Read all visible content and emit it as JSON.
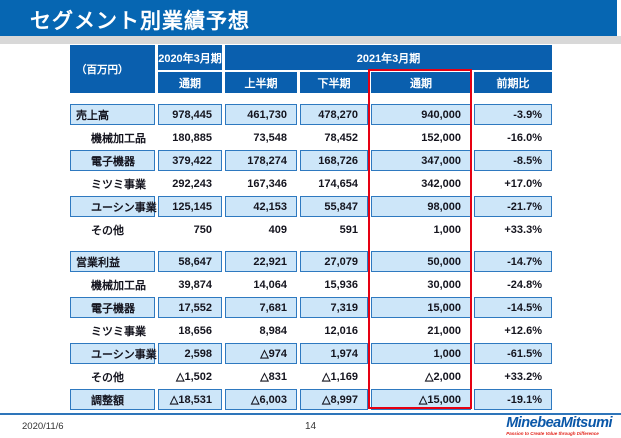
{
  "slide": {
    "title": "セグメント別業績予想"
  },
  "colors": {
    "banner_blue": "#0666b2",
    "header_blue": "#0a5fae",
    "shaded_row_blue": "#cde6f9",
    "grid_border_blue": "#2e79c0",
    "highlight_red": "#e60012",
    "logo_blue": "#0a57a8",
    "logo_red": "#e2231a"
  },
  "table": {
    "header": {
      "unit": "（百万円）",
      "fy2020": "2020年3月期",
      "fy2020_sub": "通期",
      "fy2021": "2021年3月期",
      "fy2021_sub": [
        "上半期",
        "下半期",
        "通期"
      ],
      "yoy": "前期比"
    },
    "sections": [
      {
        "rows": [
          {
            "label": "売上高",
            "indent": false,
            "values": [
              "978,445",
              "461,730",
              "478,270",
              "940,000",
              "-3.9%"
            ]
          },
          {
            "label": "機械加工品",
            "indent": true,
            "values": [
              "180,885",
              "73,548",
              "78,452",
              "152,000",
              "-16.0%"
            ]
          },
          {
            "label": "電子機器",
            "indent": true,
            "values": [
              "379,422",
              "178,274",
              "168,726",
              "347,000",
              "-8.5%"
            ]
          },
          {
            "label": "ミツミ事業",
            "indent": true,
            "values": [
              "292,243",
              "167,346",
              "174,654",
              "342,000",
              "+17.0%"
            ]
          },
          {
            "label": "ユーシン事業",
            "indent": true,
            "values": [
              "125,145",
              "42,153",
              "55,847",
              "98,000",
              "-21.7%"
            ]
          },
          {
            "label": "その他",
            "indent": true,
            "values": [
              "750",
              "409",
              "591",
              "1,000",
              "+33.3%"
            ]
          }
        ]
      },
      {
        "rows": [
          {
            "label": "営業利益",
            "indent": false,
            "values": [
              "58,647",
              "22,921",
              "27,079",
              "50,000",
              "-14.7%"
            ]
          },
          {
            "label": "機械加工品",
            "indent": true,
            "values": [
              "39,874",
              "14,064",
              "15,936",
              "30,000",
              "-24.8%"
            ]
          },
          {
            "label": "電子機器",
            "indent": true,
            "values": [
              "17,552",
              "7,681",
              "7,319",
              "15,000",
              "-14.5%"
            ]
          },
          {
            "label": "ミツミ事業",
            "indent": true,
            "values": [
              "18,656",
              "8,984",
              "12,016",
              "21,000",
              "+12.6%"
            ]
          },
          {
            "label": "ユーシン事業",
            "indent": true,
            "values": [
              "2,598",
              "△974",
              "1,974",
              "1,000",
              "-61.5%"
            ]
          },
          {
            "label": "その他",
            "indent": true,
            "values": [
              "△1,502",
              "△831",
              "△1,169",
              "△2,000",
              "+33.2%"
            ]
          },
          {
            "label": "調整額",
            "indent": true,
            "values": [
              "△18,531",
              "△6,003",
              "△8,997",
              "△15,000",
              "-19.1%"
            ]
          }
        ]
      }
    ]
  },
  "footer": {
    "date": "2020/11/6",
    "page": "14"
  },
  "logo": {
    "name": "MinebeaMitsumi",
    "tagline": "Passion to Create Value through Difference"
  }
}
